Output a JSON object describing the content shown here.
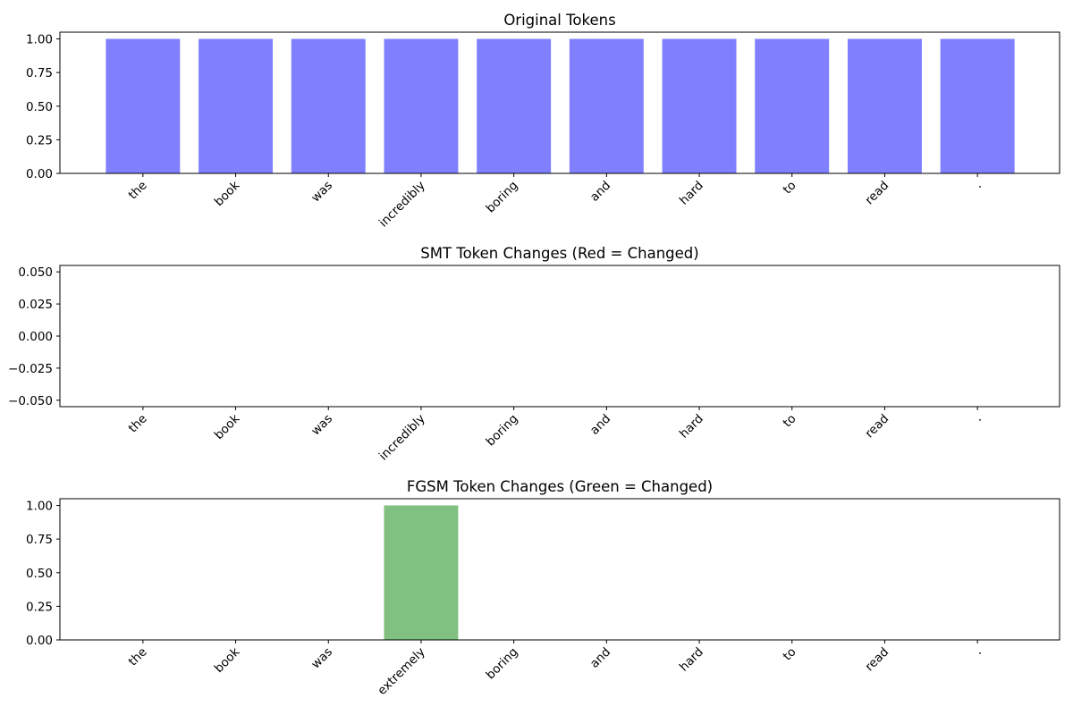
{
  "chart_data": [
    {
      "type": "bar",
      "title": "Original Tokens",
      "categories": [
        "the",
        "book",
        "was",
        "incredibly",
        "boring",
        "and",
        "hard",
        "to",
        "read",
        "."
      ],
      "values": [
        1,
        1,
        1,
        1,
        1,
        1,
        1,
        1,
        1,
        1
      ],
      "color": "#8080ff",
      "ylim": [
        0,
        1.05
      ],
      "yticks": [
        0.0,
        0.25,
        0.5,
        0.75,
        1.0
      ],
      "ytick_labels": [
        "0.00",
        "0.25",
        "0.50",
        "0.75",
        "1.00"
      ],
      "grid": false
    },
    {
      "type": "bar",
      "title": "SMT Token Changes (Red = Changed)",
      "categories": [
        "the",
        "book",
        "was",
        "incredibly",
        "boring",
        "and",
        "hard",
        "to",
        "read",
        "."
      ],
      "values": [
        0,
        0,
        0,
        0,
        0,
        0,
        0,
        0,
        0,
        0
      ],
      "color": "#ff8080",
      "ylim": [
        -0.055,
        0.055
      ],
      "yticks": [
        -0.05,
        -0.025,
        0.0,
        0.025,
        0.05
      ],
      "ytick_labels": [
        "−0.050",
        "−0.025",
        "0.000",
        "0.025",
        "0.050"
      ],
      "grid": false
    },
    {
      "type": "bar",
      "title": "FGSM Token Changes (Green = Changed)",
      "categories": [
        "the",
        "book",
        "was",
        "extremely",
        "boring",
        "and",
        "hard",
        "to",
        "read",
        "."
      ],
      "values": [
        0,
        0,
        0,
        1,
        0,
        0,
        0,
        0,
        0,
        0
      ],
      "color": "#80c080",
      "ylim": [
        0,
        1.05
      ],
      "yticks": [
        0.0,
        0.25,
        0.5,
        0.75,
        1.0
      ],
      "ytick_labels": [
        "0.00",
        "0.25",
        "0.50",
        "0.75",
        "1.00"
      ],
      "grid": false
    }
  ]
}
